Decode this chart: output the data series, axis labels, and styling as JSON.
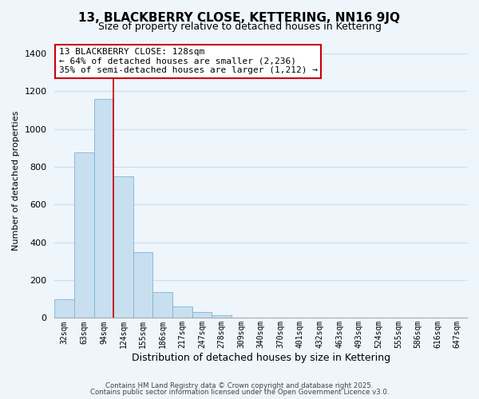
{
  "title": "13, BLACKBERRY CLOSE, KETTERING, NN16 9JQ",
  "subtitle": "Size of property relative to detached houses in Kettering",
  "xlabel": "Distribution of detached houses by size in Kettering",
  "ylabel": "Number of detached properties",
  "bar_values": [
    100,
    875,
    1160,
    750,
    350,
    135,
    60,
    30,
    15,
    0,
    0,
    0,
    0,
    0,
    0,
    0,
    0,
    0,
    0,
    0,
    0
  ],
  "categories": [
    "32sqm",
    "63sqm",
    "94sqm",
    "124sqm",
    "155sqm",
    "186sqm",
    "217sqm",
    "247sqm",
    "278sqm",
    "309sqm",
    "340sqm",
    "370sqm",
    "401sqm",
    "432sqm",
    "463sqm",
    "493sqm",
    "524sqm",
    "555sqm",
    "586sqm",
    "616sqm",
    "647sqm"
  ],
  "bar_color": "#c8dff0",
  "bar_edge_color": "#7ab4d4",
  "annotation_box_text": "13 BLACKBERRY CLOSE: 128sqm\n← 64% of detached houses are smaller (2,236)\n35% of semi-detached houses are larger (1,212) →",
  "annotation_box_color": "white",
  "annotation_box_edge_color": "#cc0000",
  "ylim": [
    0,
    1450
  ],
  "yticks": [
    0,
    200,
    400,
    600,
    800,
    1000,
    1200,
    1400
  ],
  "grid_color": "#c8dff0",
  "background_color": "#eef5fb",
  "footer_line1": "Contains HM Land Registry data © Crown copyright and database right 2025.",
  "footer_line2": "Contains public sector information licensed under the Open Government Licence v3.0.",
  "property_line_x": 3,
  "title_fontsize": 11,
  "subtitle_fontsize": 9,
  "annot_fontsize": 8
}
